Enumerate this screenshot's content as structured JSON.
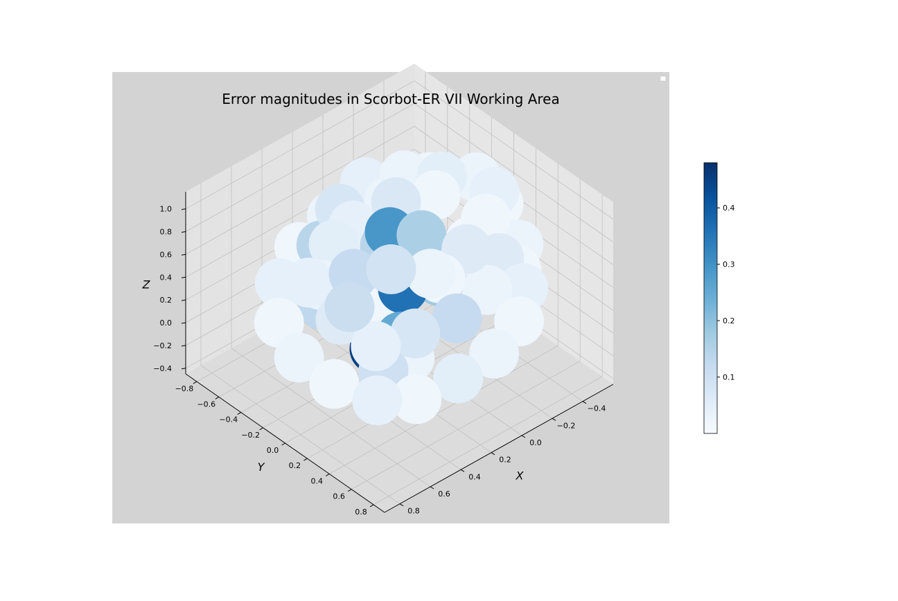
{
  "figure": {
    "title": "Error magnitudes in Scorbot-ER VII Working Area",
    "axes_background": "#d3d3d3",
    "pane_color": "#e3e3e3",
    "grid_color": "#c0c0c0"
  },
  "chart_data": {
    "type": "scatter",
    "projection": "3d",
    "title": "Error magnitudes in Scorbot-ER VII Working Area",
    "xlabel": "X",
    "ylabel": "Y",
    "zlabel": "Z",
    "xlim": [
      -0.6,
      0.9
    ],
    "ylim": [
      -0.9,
      0.9
    ],
    "zlim": [
      -0.45,
      1.15
    ],
    "x_ticks": [
      "−0.4",
      "−0.2",
      "0.0",
      "0.2",
      "0.4",
      "0.6",
      "0.8"
    ],
    "x_tick_values": [
      -0.4,
      -0.2,
      0.0,
      0.2,
      0.4,
      0.6,
      0.8
    ],
    "y_ticks": [
      "−0.8",
      "−0.6",
      "−0.4",
      "−0.2",
      "0.0",
      "0.2",
      "0.4",
      "0.6",
      "0.8"
    ],
    "y_tick_values": [
      -0.8,
      -0.6,
      -0.4,
      -0.2,
      0.0,
      0.2,
      0.4,
      0.6,
      0.8
    ],
    "z_ticks": [
      "−0.4",
      "−0.2",
      "0.0",
      "0.2",
      "0.4",
      "0.6",
      "0.8",
      "1.0"
    ],
    "z_tick_values": [
      -0.4,
      -0.2,
      0.0,
      0.2,
      0.4,
      0.6,
      0.8,
      1.0
    ],
    "grid": true,
    "legend": "top-right (empty)",
    "colormap": "Blues",
    "colorbar": {
      "range": [
        0.0,
        0.48
      ],
      "ticks": [
        "0.1",
        "0.2",
        "0.3",
        "0.4"
      ],
      "tick_values": [
        0.1,
        0.2,
        0.3,
        0.4
      ],
      "colors": [
        "#f7fbff",
        "#deebf7",
        "#c6dbef",
        "#9ecae1",
        "#6baed6",
        "#4292c6",
        "#2171b5",
        "#08519c",
        "#08306b"
      ]
    },
    "points": [
      {
        "x": -0.45,
        "y": 0.25,
        "z": 0.45,
        "err": 0.03
      },
      {
        "x": -0.5,
        "y": 0.0,
        "z": 0.6,
        "err": 0.02
      },
      {
        "x": -0.3,
        "y": 0.5,
        "z": 0.35,
        "err": 0.04
      },
      {
        "x": -0.2,
        "y": 0.6,
        "z": 0.2,
        "err": 0.02
      },
      {
        "x": 0.0,
        "y": 0.65,
        "z": 0.1,
        "err": 0.03
      },
      {
        "x": 0.2,
        "y": 0.6,
        "z": 0.0,
        "err": 0.05
      },
      {
        "x": 0.4,
        "y": 0.5,
        "z": -0.1,
        "err": 0.02
      },
      {
        "x": 0.55,
        "y": 0.35,
        "z": -0.1,
        "err": 0.04
      },
      {
        "x": 0.65,
        "y": 0.1,
        "z": -0.05,
        "err": 0.02
      },
      {
        "x": 0.7,
        "y": -0.15,
        "z": 0.05,
        "err": 0.03
      },
      {
        "x": 0.65,
        "y": -0.4,
        "z": 0.15,
        "err": 0.02
      },
      {
        "x": 0.5,
        "y": -0.6,
        "z": 0.25,
        "err": 0.04
      },
      {
        "x": 0.3,
        "y": -0.7,
        "z": 0.35,
        "err": 0.02
      },
      {
        "x": 0.05,
        "y": -0.75,
        "z": 0.4,
        "err": 0.03
      },
      {
        "x": -0.2,
        "y": -0.6,
        "z": 0.55,
        "err": 0.02
      },
      {
        "x": -0.4,
        "y": -0.4,
        "z": 0.6,
        "err": 0.05
      },
      {
        "x": -0.5,
        "y": -0.2,
        "z": 0.7,
        "err": 0.03
      },
      {
        "x": -0.4,
        "y": 0.1,
        "z": 0.85,
        "err": 0.04
      },
      {
        "x": -0.2,
        "y": 0.3,
        "z": 0.9,
        "err": 0.02
      },
      {
        "x": 0.0,
        "y": 0.4,
        "z": 0.85,
        "err": 0.06
      },
      {
        "x": 0.2,
        "y": 0.35,
        "z": 0.75,
        "err": 0.03
      },
      {
        "x": 0.35,
        "y": 0.2,
        "z": 0.8,
        "err": 0.09
      },
      {
        "x": 0.45,
        "y": 0.0,
        "z": 0.7,
        "err": 0.12
      },
      {
        "x": 0.4,
        "y": -0.25,
        "z": 0.75,
        "err": 0.05
      },
      {
        "x": 0.25,
        "y": -0.4,
        "z": 0.85,
        "err": 0.08
      },
      {
        "x": 0.05,
        "y": -0.45,
        "z": 0.9,
        "err": 0.04
      },
      {
        "x": -0.1,
        "y": -0.3,
        "z": 0.95,
        "err": 0.03
      },
      {
        "x": -0.2,
        "y": -0.1,
        "z": 1.0,
        "err": 0.05
      },
      {
        "x": -0.05,
        "y": 0.05,
        "z": 1.05,
        "err": 0.02
      },
      {
        "x": 0.1,
        "y": -0.1,
        "z": 1.0,
        "err": 0.07
      },
      {
        "x": 0.25,
        "y": 0.05,
        "z": 0.95,
        "err": 0.29
      },
      {
        "x": 0.15,
        "y": 0.2,
        "z": 0.95,
        "err": 0.16
      },
      {
        "x": 0.0,
        "y": 0.25,
        "z": 0.65,
        "err": 0.04
      },
      {
        "x": -0.25,
        "y": 0.35,
        "z": 0.55,
        "err": 0.06
      },
      {
        "x": -0.3,
        "y": 0.15,
        "z": 0.4,
        "err": 0.1
      },
      {
        "x": -0.1,
        "y": 0.45,
        "z": 0.45,
        "err": 0.03
      },
      {
        "x": 0.1,
        "y": 0.45,
        "z": 0.35,
        "err": 0.12
      },
      {
        "x": 0.3,
        "y": 0.35,
        "z": 0.3,
        "err": 0.08
      },
      {
        "x": 0.45,
        "y": 0.2,
        "z": 0.2,
        "err": 0.04
      },
      {
        "x": 0.5,
        "y": -0.05,
        "z": 0.3,
        "err": 0.06
      },
      {
        "x": 0.45,
        "y": -0.3,
        "z": 0.4,
        "err": 0.03
      },
      {
        "x": 0.3,
        "y": -0.5,
        "z": 0.5,
        "err": 0.14
      },
      {
        "x": 0.1,
        "y": -0.55,
        "z": 0.6,
        "err": 0.05
      },
      {
        "x": -0.1,
        "y": -0.5,
        "z": 0.7,
        "err": 0.03
      },
      {
        "x": -0.3,
        "y": -0.35,
        "z": 0.75,
        "err": 0.02
      },
      {
        "x": 0.55,
        "y": 0.1,
        "z": 0.55,
        "err": 0.11
      },
      {
        "x": 0.6,
        "y": -0.2,
        "z": 0.6,
        "err": 0.04
      },
      {
        "x": 0.1,
        "y": -0.2,
        "z": 0.55,
        "err": 0.14
      },
      {
        "x": 0.05,
        "y": 0.0,
        "z": 0.5,
        "err": 0.22
      },
      {
        "x": 0.0,
        "y": 0.15,
        "z": 0.4,
        "err": 0.18
      },
      {
        "x": 0.2,
        "y": 0.1,
        "z": 0.45,
        "err": 0.36
      },
      {
        "x": 0.15,
        "y": -0.05,
        "z": 0.2,
        "err": 0.28
      },
      {
        "x": 0.25,
        "y": 0.15,
        "z": 0.1,
        "err": 0.25
      },
      {
        "x": 0.35,
        "y": 0.05,
        "z": 0.0,
        "err": 0.45
      },
      {
        "x": 0.3,
        "y": -0.15,
        "z": 0.1,
        "err": 0.02
      },
      {
        "x": 0.2,
        "y": -0.3,
        "z": 0.25,
        "err": 0.16
      },
      {
        "x": 0.4,
        "y": -0.35,
        "z": 0.15,
        "err": 0.13
      },
      {
        "x": 0.4,
        "y": 0.2,
        "z": -0.05,
        "err": 0.1
      },
      {
        "x": 0.3,
        "y": 0.3,
        "z": 0.05,
        "err": 0.03
      },
      {
        "x": -0.05,
        "y": 0.3,
        "z": 0.3,
        "err": 0.07
      },
      {
        "x": 0.1,
        "y": 0.3,
        "z": 0.6,
        "err": 0.02
      },
      {
        "x": 0.2,
        "y": -0.35,
        "z": 0.7,
        "err": 0.04
      },
      {
        "x": 0.0,
        "y": -0.3,
        "z": 0.8,
        "err": 0.03
      },
      {
        "x": -0.4,
        "y": 0.3,
        "z": 0.3,
        "err": 0.02
      },
      {
        "x": -0.35,
        "y": -0.05,
        "z": 0.35,
        "err": 0.01
      },
      {
        "x": 0.25,
        "y": 0.0,
        "z": 0.3,
        "err": 0.02
      },
      {
        "x": 0.0,
        "y": -0.35,
        "z": 0.5,
        "err": 0.13
      }
    ]
  }
}
